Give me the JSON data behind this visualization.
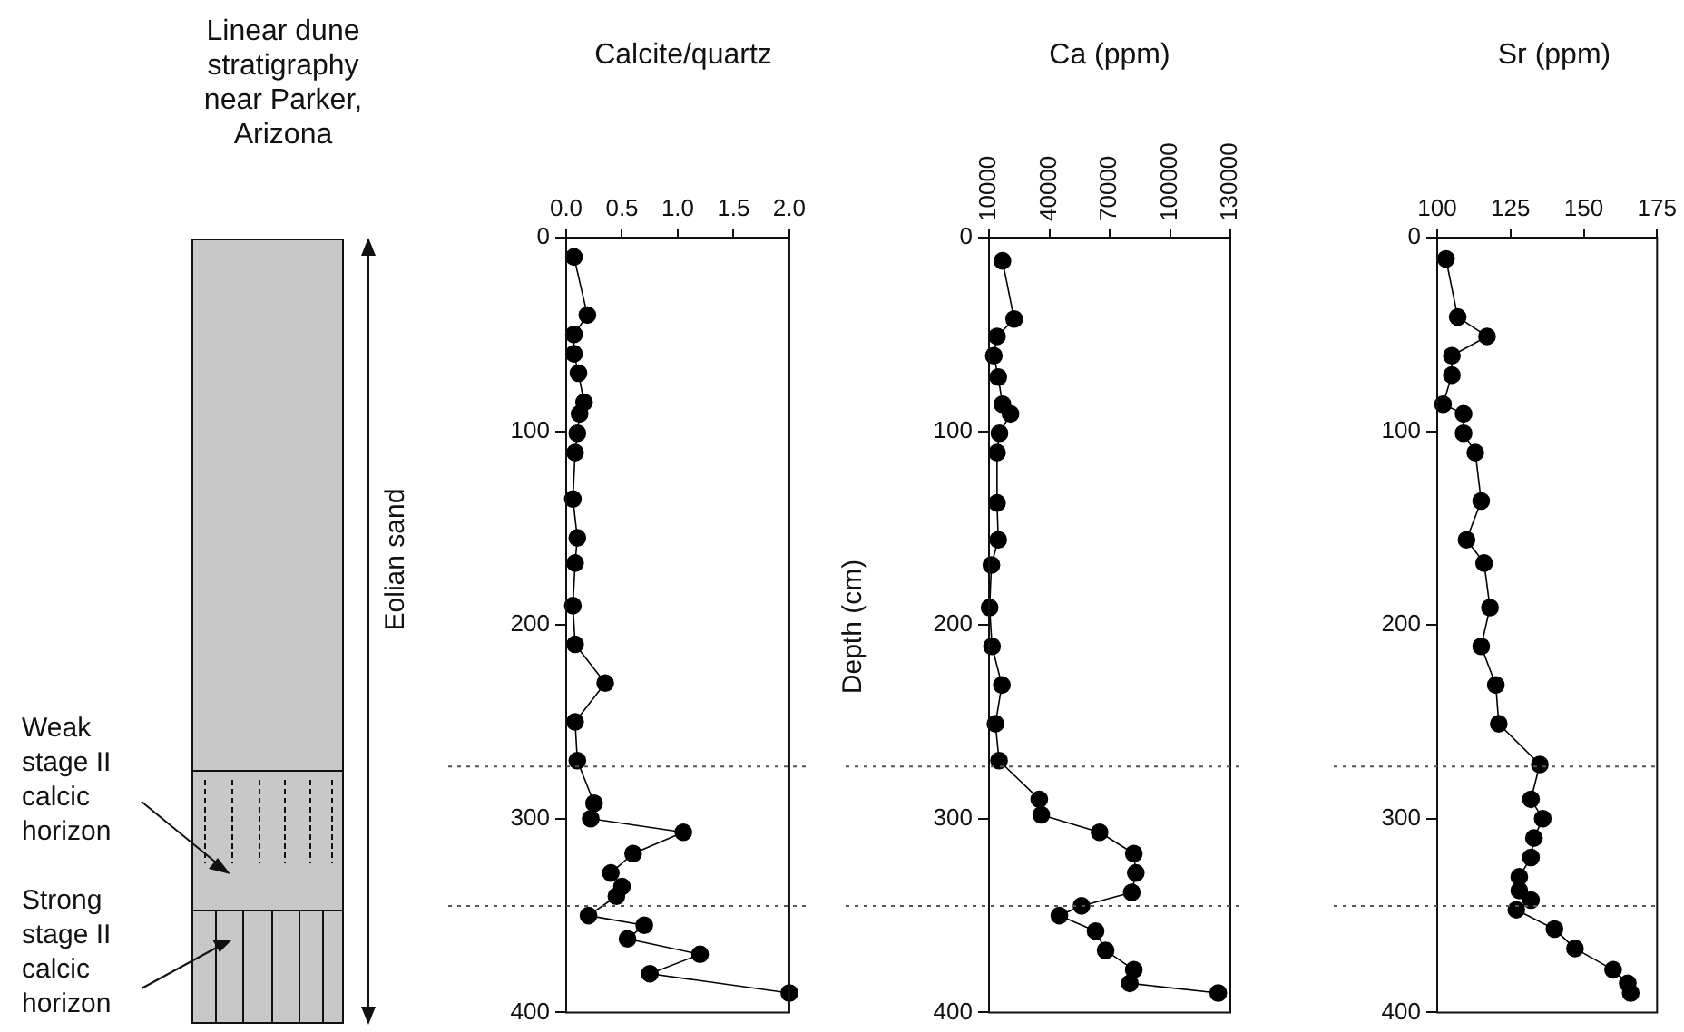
{
  "chart_data": [
    {
      "type": "other",
      "title": "Linear dune stratigraphy near Parker, Arizona",
      "annotations": [
        "Weak stage II calcic horizon",
        "Strong stage II calcic horizon",
        "Eolian sand"
      ]
    },
    {
      "type": "line",
      "title": "Calcite/quartz",
      "xlim": [
        0,
        2
      ],
      "xticks": [
        {
          "value": 0,
          "label": "0.0"
        },
        {
          "value": 0.5,
          "label": "0.5"
        },
        {
          "value": 1,
          "label": "1.0"
        },
        {
          "value": 1.5,
          "label": "1.5"
        },
        {
          "value": 2,
          "label": "2.0"
        }
      ],
      "ylim": [
        400,
        0
      ],
      "yticks": [
        0,
        100,
        200,
        300,
        400
      ],
      "marker": "circle",
      "ref_lines": [
        {
          "axis": "y",
          "value": 273,
          "color": "#555555",
          "line_style": "dotted"
        },
        {
          "axis": "y",
          "value": 345,
          "color": "#555555",
          "line_style": "dotted"
        }
      ],
      "series": [
        {
          "color": "#000000",
          "x": [
            0.07,
            0.19,
            0.07,
            0.07,
            0.11,
            0.16,
            0.12,
            0.1,
            0.08,
            0.06,
            0.1,
            0.08,
            0.06,
            0.08,
            0.35,
            0.08,
            0.1,
            0.25,
            0.22,
            1.05,
            0.6,
            0.4,
            0.5,
            0.45,
            0.2,
            0.7,
            0.55,
            1.2,
            0.75,
            2.0
          ],
          "values": [
            10,
            40,
            50,
            60,
            70,
            85,
            91,
            101,
            111,
            135,
            155,
            168,
            190,
            210,
            230,
            250,
            270,
            292,
            300,
            307,
            318,
            328,
            335,
            340,
            350,
            355,
            362,
            370,
            380,
            390
          ]
        }
      ]
    },
    {
      "type": "line",
      "title": "Ca (ppm)",
      "ylabel": "Depth (cm)",
      "xlim": [
        10000,
        130000
      ],
      "xticks": [
        10000,
        40000,
        70000,
        100000,
        130000
      ],
      "ylim": [
        400,
        0
      ],
      "yticks": [
        0,
        100,
        200,
        300,
        400
      ],
      "marker": "circle",
      "ref_lines": [
        {
          "axis": "y",
          "value": 273,
          "color": "#555555",
          "line_style": "dotted"
        },
        {
          "axis": "y",
          "value": 345,
          "color": "#555555",
          "line_style": "dotted"
        }
      ],
      "series": [
        {
          "color": "#000000",
          "x": [
            16700,
            22500,
            14000,
            12400,
            14600,
            16700,
            20700,
            15200,
            14000,
            14000,
            14600,
            11200,
            10300,
            11500,
            16400,
            13200,
            15000,
            35000,
            36000,
            65000,
            82000,
            83000,
            81000,
            56000,
            45000,
            63000,
            68000,
            82000,
            80000,
            124000
          ],
          "values": [
            12,
            42,
            51,
            61,
            72,
            86,
            91,
            101,
            111,
            137,
            156,
            169,
            191,
            211,
            231,
            251,
            270,
            290,
            298,
            307,
            318,
            328,
            338,
            345,
            350,
            358,
            368,
            378,
            385,
            390
          ]
        }
      ]
    },
    {
      "type": "line",
      "title": "Sr (ppm)",
      "xlim": [
        100,
        175
      ],
      "xticks": [
        100,
        125,
        150,
        175
      ],
      "ylim": [
        400,
        0
      ],
      "yticks": [
        0,
        100,
        200,
        300,
        400
      ],
      "marker": "circle",
      "ref_lines": [
        {
          "axis": "y",
          "value": 273,
          "color": "#555555",
          "line_style": "dotted"
        },
        {
          "axis": "y",
          "value": 345,
          "color": "#555555",
          "line_style": "dotted"
        }
      ],
      "series": [
        {
          "color": "#000000",
          "x": [
            103,
            107,
            117,
            105,
            105,
            102,
            109,
            109,
            113,
            115,
            110,
            116,
            118,
            115,
            120,
            121,
            135,
            132,
            136,
            133,
            132,
            128,
            128,
            132,
            127,
            140,
            147,
            160,
            165,
            166
          ],
          "values": [
            11,
            41,
            51,
            61,
            71,
            86,
            91,
            101,
            111,
            136,
            156,
            168,
            191,
            211,
            231,
            251,
            272,
            290,
            300,
            310,
            320,
            330,
            337,
            342,
            347,
            357,
            367,
            378,
            385,
            390
          ]
        }
      ]
    }
  ]
}
